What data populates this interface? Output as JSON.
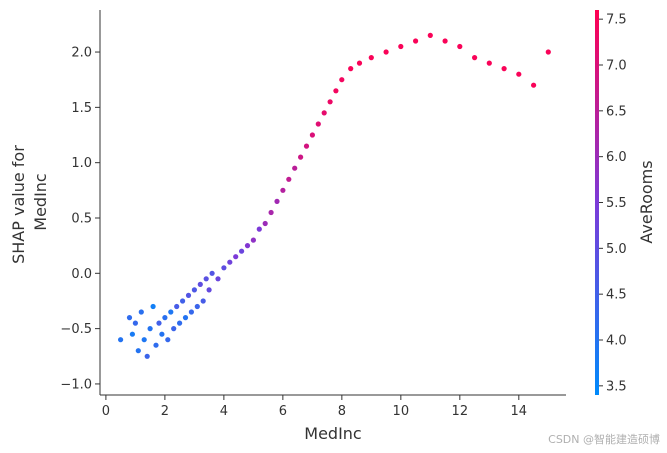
{
  "chart_data": {
    "type": "scatter",
    "title": "",
    "xlabel": "MedInc",
    "ylabel_lines": [
      "SHAP value for",
      "MedInc"
    ],
    "xlim": [
      -0.2,
      15.6
    ],
    "ylim": [
      -1.1,
      2.38
    ],
    "xticks": [
      0,
      2,
      4,
      6,
      8,
      10,
      12,
      14
    ],
    "yticks": [
      -1.0,
      -0.5,
      0.0,
      0.5,
      1.0,
      1.5,
      2.0
    ],
    "grid": false,
    "colorbar": {
      "label": "AveRooms",
      "range": [
        3.4,
        7.6
      ],
      "ticks": [
        3.5,
        4.0,
        4.5,
        5.0,
        5.5,
        6.0,
        6.5,
        7.0,
        7.5
      ],
      "color_low": "#008afb",
      "color_mid": "#7c3ad8",
      "color_high": "#ff0052"
    },
    "points": [
      {
        "x": 0.5,
        "y": -0.6,
        "c": 4.0
      },
      {
        "x": 0.8,
        "y": -0.4,
        "c": 4.2
      },
      {
        "x": 0.9,
        "y": -0.55,
        "c": 3.8
      },
      {
        "x": 1.0,
        "y": -0.45,
        "c": 4.3
      },
      {
        "x": 1.1,
        "y": -0.7,
        "c": 4.0
      },
      {
        "x": 1.2,
        "y": -0.35,
        "c": 4.1
      },
      {
        "x": 1.3,
        "y": -0.6,
        "c": 3.9
      },
      {
        "x": 1.4,
        "y": -0.75,
        "c": 4.4
      },
      {
        "x": 1.5,
        "y": -0.5,
        "c": 4.0
      },
      {
        "x": 1.6,
        "y": -0.3,
        "c": 3.7
      },
      {
        "x": 1.7,
        "y": -0.65,
        "c": 4.2
      },
      {
        "x": 1.8,
        "y": -0.45,
        "c": 4.5
      },
      {
        "x": 1.9,
        "y": -0.55,
        "c": 4.0
      },
      {
        "x": 2.0,
        "y": -0.4,
        "c": 4.1
      },
      {
        "x": 2.1,
        "y": -0.6,
        "c": 4.3
      },
      {
        "x": 2.2,
        "y": -0.35,
        "c": 3.9
      },
      {
        "x": 2.3,
        "y": -0.5,
        "c": 4.4
      },
      {
        "x": 2.4,
        "y": -0.3,
        "c": 4.6
      },
      {
        "x": 2.5,
        "y": -0.45,
        "c": 4.2
      },
      {
        "x": 2.6,
        "y": -0.25,
        "c": 4.5
      },
      {
        "x": 2.7,
        "y": -0.4,
        "c": 4.0
      },
      {
        "x": 2.8,
        "y": -0.2,
        "c": 4.8
      },
      {
        "x": 2.9,
        "y": -0.35,
        "c": 4.3
      },
      {
        "x": 3.0,
        "y": -0.15,
        "c": 4.7
      },
      {
        "x": 3.1,
        "y": -0.3,
        "c": 4.4
      },
      {
        "x": 3.2,
        "y": -0.1,
        "c": 5.0
      },
      {
        "x": 3.3,
        "y": -0.25,
        "c": 4.6
      },
      {
        "x": 3.4,
        "y": -0.05,
        "c": 4.9
      },
      {
        "x": 3.5,
        "y": -0.15,
        "c": 5.1
      },
      {
        "x": 3.6,
        "y": 0.0,
        "c": 4.8
      },
      {
        "x": 3.8,
        "y": -0.05,
        "c": 5.2
      },
      {
        "x": 4.0,
        "y": 0.05,
        "c": 5.0
      },
      {
        "x": 4.2,
        "y": 0.1,
        "c": 5.3
      },
      {
        "x": 4.4,
        "y": 0.15,
        "c": 5.5
      },
      {
        "x": 4.6,
        "y": 0.2,
        "c": 5.2
      },
      {
        "x": 4.8,
        "y": 0.25,
        "c": 5.6
      },
      {
        "x": 5.0,
        "y": 0.3,
        "c": 5.8
      },
      {
        "x": 5.2,
        "y": 0.4,
        "c": 5.5
      },
      {
        "x": 5.4,
        "y": 0.45,
        "c": 6.0
      },
      {
        "x": 5.6,
        "y": 0.55,
        "c": 6.2
      },
      {
        "x": 5.8,
        "y": 0.65,
        "c": 6.1
      },
      {
        "x": 6.0,
        "y": 0.75,
        "c": 6.4
      },
      {
        "x": 6.2,
        "y": 0.85,
        "c": 6.6
      },
      {
        "x": 6.4,
        "y": 0.95,
        "c": 6.5
      },
      {
        "x": 6.6,
        "y": 1.05,
        "c": 6.8
      },
      {
        "x": 6.8,
        "y": 1.15,
        "c": 6.9
      },
      {
        "x": 7.0,
        "y": 1.25,
        "c": 7.0
      },
      {
        "x": 7.2,
        "y": 1.35,
        "c": 7.1
      },
      {
        "x": 7.4,
        "y": 1.45,
        "c": 7.2
      },
      {
        "x": 7.6,
        "y": 1.55,
        "c": 7.3
      },
      {
        "x": 7.8,
        "y": 1.65,
        "c": 7.4
      },
      {
        "x": 8.0,
        "y": 1.75,
        "c": 7.4
      },
      {
        "x": 8.3,
        "y": 1.85,
        "c": 7.5
      },
      {
        "x": 8.6,
        "y": 1.9,
        "c": 7.5
      },
      {
        "x": 9.0,
        "y": 1.95,
        "c": 7.5
      },
      {
        "x": 9.5,
        "y": 2.0,
        "c": 7.5
      },
      {
        "x": 10.0,
        "y": 2.05,
        "c": 7.5
      },
      {
        "x": 10.5,
        "y": 2.1,
        "c": 7.5
      },
      {
        "x": 11.0,
        "y": 2.15,
        "c": 7.5
      },
      {
        "x": 11.5,
        "y": 2.1,
        "c": 7.5
      },
      {
        "x": 12.0,
        "y": 2.05,
        "c": 7.5
      },
      {
        "x": 12.5,
        "y": 1.95,
        "c": 7.5
      },
      {
        "x": 13.0,
        "y": 1.9,
        "c": 7.5
      },
      {
        "x": 13.5,
        "y": 1.85,
        "c": 7.5
      },
      {
        "x": 14.0,
        "y": 1.8,
        "c": 7.5
      },
      {
        "x": 14.5,
        "y": 1.7,
        "c": 7.5
      },
      {
        "x": 15.0,
        "y": 2.0,
        "c": 7.5
      }
    ]
  },
  "watermark": "CSDN @智能建造硕博"
}
